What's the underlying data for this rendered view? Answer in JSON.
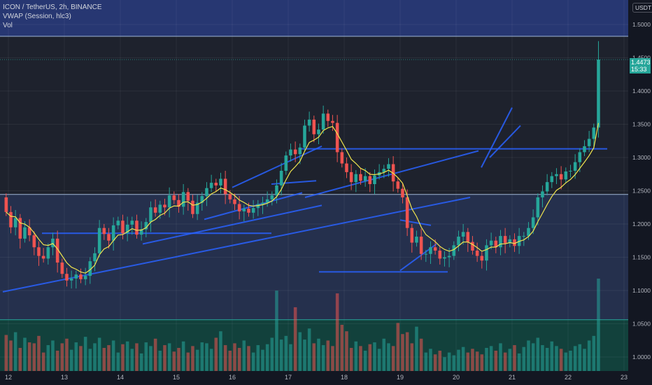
{
  "header": {
    "symbol_line": "ICON / TetherUS, 2h, BINANCE",
    "indicator_1": "VWAP (Session, hlc3)",
    "indicator_2": "Vol",
    "currency": "USDT"
  },
  "last_price": {
    "value": "1.4473",
    "countdown": "15:33"
  },
  "colors": {
    "background": "#1e222d",
    "up": "#26a69a",
    "down": "#ef5350",
    "vwap": "#f0e54e",
    "trendline": "#2962ff",
    "box_top": "#283a7a",
    "box_mid": "#26324f",
    "box_bottom": "#12433d"
  },
  "chart_data": {
    "type": "candlestick",
    "symbol": "ICON / TetherUS",
    "interval": "2h",
    "exchange": "BINANCE",
    "y_ticks": [
      "1.5000",
      "1.4500",
      "1.4000",
      "1.3500",
      "1.3000",
      "1.2500",
      "1.2000",
      "1.1500",
      "1.1000",
      "1.0500",
      "1.0000"
    ],
    "y_tick_values": [
      1.5,
      1.45,
      1.4,
      1.35,
      1.3,
      1.25,
      1.2,
      1.15,
      1.1,
      1.05,
      1.0
    ],
    "x_ticks": [
      "12",
      "13",
      "14",
      "15",
      "16",
      "17",
      "18",
      "19",
      "20",
      "21",
      "22",
      "23"
    ],
    "x_tick_days": [
      12,
      13,
      14,
      15,
      16,
      17,
      18,
      19,
      20,
      21,
      22,
      23
    ],
    "ylim": [
      0.975,
      1.525
    ],
    "xlim": [
      12.0,
      23.0
    ],
    "horizontal_levels": [
      1.4823,
      1.2445,
      1.0561
    ],
    "last_price": 1.4473,
    "candles_start_day": 11.96,
    "candles_per_day": 12,
    "closes": [
      1.218,
      1.195,
      1.209,
      1.178,
      1.195,
      1.183,
      1.165,
      1.152,
      1.148,
      1.165,
      1.178,
      1.142,
      1.125,
      1.115,
      1.118,
      1.124,
      1.117,
      1.122,
      1.144,
      1.156,
      1.194,
      1.185,
      1.175,
      1.198,
      1.205,
      1.186,
      1.199,
      1.205,
      1.184,
      1.192,
      1.203,
      1.225,
      1.217,
      1.229,
      1.225,
      1.243,
      1.236,
      1.226,
      1.248,
      1.235,
      1.215,
      1.232,
      1.242,
      1.254,
      1.262,
      1.258,
      1.268,
      1.245,
      1.237,
      1.23,
      1.219,
      1.223,
      1.217,
      1.224,
      1.23,
      1.232,
      1.237,
      1.243,
      1.258,
      1.28,
      1.303,
      1.312,
      1.305,
      1.315,
      1.348,
      1.357,
      1.335,
      1.342,
      1.366,
      1.355,
      1.352,
      1.308,
      1.291,
      1.278,
      1.263,
      1.275,
      1.265,
      1.272,
      1.26,
      1.273,
      1.278,
      1.283,
      1.29,
      1.264,
      1.253,
      1.24,
      1.194,
      1.172,
      1.181,
      1.155,
      1.155,
      1.165,
      1.16,
      1.148,
      1.15,
      1.152,
      1.168,
      1.181,
      1.188,
      1.173,
      1.16,
      1.152,
      1.145,
      1.168,
      1.175,
      1.165,
      1.182,
      1.171,
      1.177,
      1.167,
      1.182,
      1.182,
      1.194,
      1.21,
      1.24,
      1.249,
      1.263,
      1.272,
      1.275,
      1.267,
      1.279,
      1.28,
      1.293,
      1.308,
      1.317,
      1.328,
      1.345,
      1.4473
    ],
    "opens": [
      1.24,
      1.218,
      1.195,
      1.209,
      1.178,
      1.195,
      1.183,
      1.165,
      1.152,
      1.148,
      1.165,
      1.178,
      1.142,
      1.125,
      1.115,
      1.118,
      1.124,
      1.117,
      1.122,
      1.144,
      1.156,
      1.194,
      1.185,
      1.175,
      1.198,
      1.205,
      1.186,
      1.199,
      1.205,
      1.184,
      1.192,
      1.203,
      1.225,
      1.217,
      1.229,
      1.225,
      1.243,
      1.236,
      1.226,
      1.248,
      1.235,
      1.215,
      1.232,
      1.242,
      1.254,
      1.262,
      1.258,
      1.268,
      1.245,
      1.237,
      1.23,
      1.219,
      1.223,
      1.217,
      1.224,
      1.23,
      1.232,
      1.237,
      1.243,
      1.258,
      1.28,
      1.303,
      1.312,
      1.305,
      1.315,
      1.348,
      1.357,
      1.335,
      1.342,
      1.366,
      1.355,
      1.352,
      1.308,
      1.291,
      1.278,
      1.263,
      1.275,
      1.265,
      1.272,
      1.26,
      1.273,
      1.278,
      1.283,
      1.29,
      1.264,
      1.253,
      1.24,
      1.194,
      1.172,
      1.181,
      1.155,
      1.155,
      1.165,
      1.16,
      1.148,
      1.15,
      1.152,
      1.168,
      1.181,
      1.188,
      1.173,
      1.16,
      1.152,
      1.145,
      1.168,
      1.175,
      1.165,
      1.182,
      1.171,
      1.177,
      1.167,
      1.182,
      1.182,
      1.194,
      1.21,
      1.24,
      1.249,
      1.263,
      1.272,
      1.275,
      1.267,
      1.279,
      1.28,
      1.293,
      1.308,
      1.317,
      1.328,
      1.345
    ],
    "volumes_relative": [
      0.39,
      0.33,
      0.42,
      0.25,
      0.36,
      0.31,
      0.3,
      0.38,
      0.2,
      0.28,
      0.33,
      0.22,
      0.3,
      0.35,
      0.23,
      0.31,
      0.27,
      0.37,
      0.24,
      0.3,
      0.36,
      0.25,
      0.28,
      0.33,
      0.2,
      0.29,
      0.32,
      0.24,
      0.3,
      0.19,
      0.31,
      0.27,
      0.35,
      0.22,
      0.28,
      0.3,
      0.21,
      0.25,
      0.32,
      0.2,
      0.27,
      0.23,
      0.31,
      0.3,
      0.24,
      0.36,
      0.43,
      0.28,
      0.22,
      0.3,
      0.25,
      0.33,
      0.27,
      0.2,
      0.28,
      0.23,
      0.29,
      0.36,
      0.87,
      0.34,
      0.38,
      0.29,
      0.69,
      0.42,
      0.34,
      0.46,
      0.3,
      0.35,
      0.28,
      0.33,
      0.27,
      0.84,
      0.5,
      0.43,
      0.25,
      0.32,
      0.27,
      0.22,
      0.29,
      0.31,
      0.24,
      0.35,
      0.3,
      0.27,
      0.52,
      0.4,
      0.42,
      0.3,
      0.48,
      0.35,
      0.2,
      0.24,
      0.18,
      0.22,
      0.15,
      0.2,
      0.17,
      0.23,
      0.26,
      0.2,
      0.24,
      0.21,
      0.18,
      0.25,
      0.27,
      0.22,
      0.3,
      0.2,
      0.24,
      0.28,
      0.19,
      0.26,
      0.33,
      0.3,
      0.36,
      0.28,
      0.25,
      0.32,
      0.27,
      0.24,
      0.2,
      0.22,
      0.27,
      0.29,
      0.24,
      0.33,
      0.38,
      1.0
    ]
  }
}
